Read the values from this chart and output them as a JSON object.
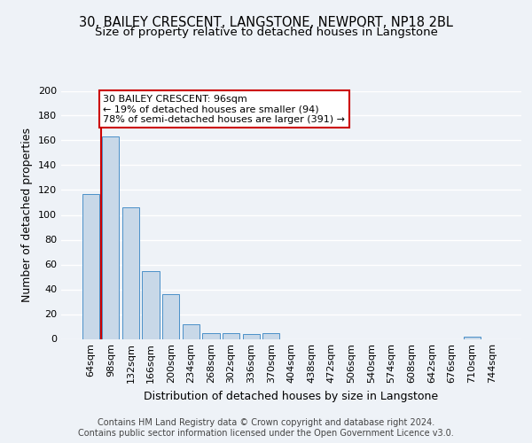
{
  "title": "30, BAILEY CRESCENT, LANGSTONE, NEWPORT, NP18 2BL",
  "subtitle": "Size of property relative to detached houses in Langstone",
  "xlabel": "Distribution of detached houses by size in Langstone",
  "ylabel": "Number of detached properties",
  "bar_labels": [
    "64sqm",
    "98sqm",
    "132sqm",
    "166sqm",
    "200sqm",
    "234sqm",
    "268sqm",
    "302sqm",
    "336sqm",
    "370sqm",
    "404sqm",
    "438sqm",
    "472sqm",
    "506sqm",
    "540sqm",
    "574sqm",
    "608sqm",
    "642sqm",
    "676sqm",
    "710sqm",
    "744sqm"
  ],
  "bar_values": [
    117,
    163,
    106,
    55,
    36,
    12,
    5,
    5,
    4,
    5,
    0,
    0,
    0,
    0,
    0,
    0,
    0,
    0,
    0,
    2,
    0
  ],
  "bar_color": "#c8d8e8",
  "bar_edge_color": "#4a90c8",
  "annotation_line1": "30 BAILEY CRESCENT: 96sqm",
  "annotation_line2": "← 19% of detached houses are smaller (94)",
  "annotation_line3": "78% of semi-detached houses are larger (391) →",
  "annotation_box_color": "#ffffff",
  "annotation_box_edge": "#cc0000",
  "vline_color": "#cc0000",
  "ylim": [
    0,
    200
  ],
  "yticks": [
    0,
    20,
    40,
    60,
    80,
    100,
    120,
    140,
    160,
    180,
    200
  ],
  "footer": "Contains HM Land Registry data © Crown copyright and database right 2024.\nContains public sector information licensed under the Open Government Licence v3.0.",
  "bg_color": "#eef2f7",
  "grid_color": "#ffffff",
  "title_fontsize": 10.5,
  "subtitle_fontsize": 9.5,
  "axis_label_fontsize": 9,
  "tick_fontsize": 8,
  "footer_fontsize": 7
}
